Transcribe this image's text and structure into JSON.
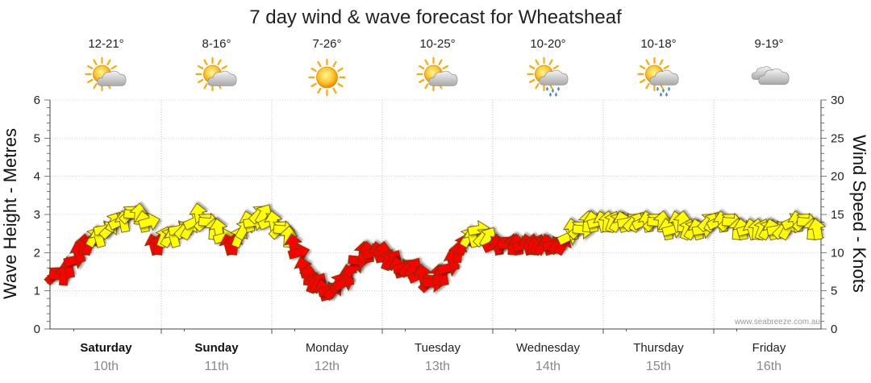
{
  "chart_data": {
    "type": "line",
    "title": "7 day wind & wave forecast for Wheatsheaf",
    "ylabel_left": "Wave Height - Metres",
    "ylabel_right": "Wind Speed - Knots",
    "ylim_left": [
      0,
      6
    ],
    "ylim_right": [
      0,
      30
    ],
    "yticks_left": [
      "0",
      "1",
      "2",
      "3",
      "4",
      "5",
      "6"
    ],
    "yticks_right": [
      "0",
      "5",
      "10",
      "15",
      "20",
      "25",
      "30"
    ],
    "grid": true,
    "watermark": "www.seabreeze.com.au",
    "days": [
      {
        "name": "Saturday",
        "date": "10th",
        "temp": "12-21°",
        "weather": "partly-cloudy-icon",
        "bold": true
      },
      {
        "name": "Sunday",
        "date": "11th",
        "temp": "8-16°",
        "weather": "partly-cloudy-icon",
        "bold": true
      },
      {
        "name": "Monday",
        "date": "12th",
        "temp": "7-26°",
        "weather": "sunny-icon",
        "bold": false
      },
      {
        "name": "Tuesday",
        "date": "13th",
        "temp": "10-25°",
        "weather": "partly-cloudy-icon",
        "bold": false
      },
      {
        "name": "Wednesday",
        "date": "14th",
        "temp": "10-20°",
        "weather": "showers-icon",
        "bold": false
      },
      {
        "name": "Thursday",
        "date": "15th",
        "temp": "10-18°",
        "weather": "showers-icon",
        "bold": false
      },
      {
        "name": "Friday",
        "date": "16th",
        "temp": "9-19°",
        "weather": "cloudy-icon",
        "bold": false
      }
    ],
    "series": [
      {
        "name": "Wind Speed - Knots",
        "unit": "knots",
        "color_levels": {
          "low": "#ff0000",
          "high": "#ffff00"
        },
        "threshold": 12,
        "values": [
          7,
          7,
          7,
          8,
          9,
          10,
          11,
          11,
          12,
          12,
          13,
          13,
          14,
          14,
          14,
          15,
          15,
          15,
          14,
          14,
          11,
          11,
          12,
          12,
          12,
          13,
          13,
          13,
          14,
          15,
          14,
          14,
          13,
          13,
          12,
          11,
          11,
          12,
          13,
          14,
          14,
          15,
          15,
          14,
          14,
          13,
          13,
          12,
          11,
          10,
          8,
          7,
          6,
          6,
          5,
          5,
          5,
          6,
          6,
          7,
          8,
          9,
          10,
          10,
          10,
          10,
          10,
          9,
          9,
          8,
          8,
          8,
          8,
          7,
          7,
          6,
          6,
          7,
          7,
          8,
          9,
          10,
          11,
          12,
          12,
          13,
          12,
          12,
          11,
          11,
          11,
          11,
          11,
          11,
          11,
          11,
          11,
          11,
          11,
          11,
          11,
          11,
          11,
          12,
          13,
          13,
          13,
          14,
          14,
          14,
          14,
          14,
          14,
          14,
          14,
          14,
          14,
          14,
          14,
          14,
          14,
          14,
          14,
          13,
          13,
          14,
          14,
          13,
          13,
          13,
          13,
          14,
          14,
          14,
          14,
          14,
          14,
          13,
          13,
          13,
          13,
          13,
          13,
          13,
          13,
          13,
          13,
          13,
          14,
          14,
          14,
          14,
          13,
          13
        ]
      }
    ],
    "arrow_count": 154
  }
}
